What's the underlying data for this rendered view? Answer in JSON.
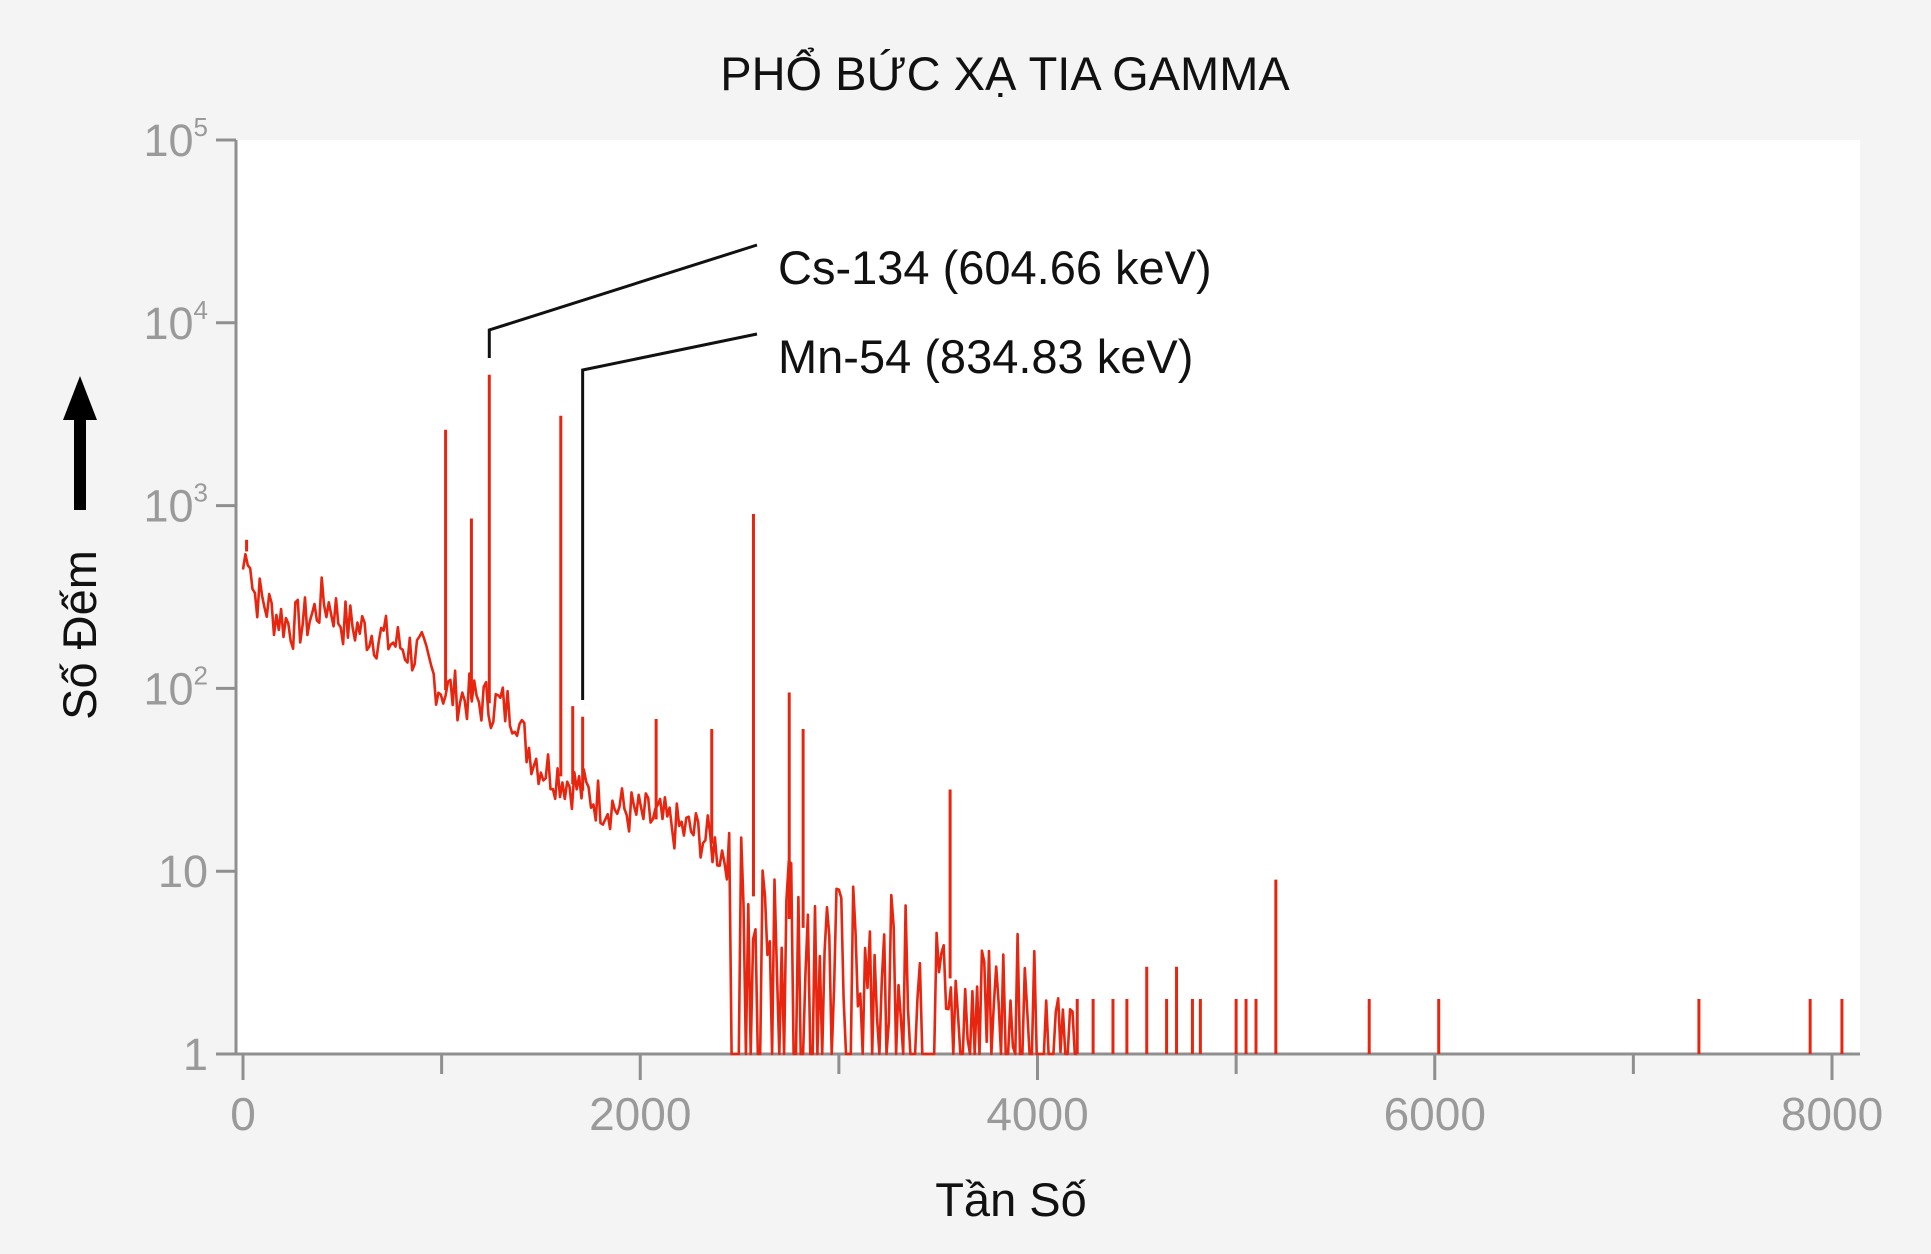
{
  "chart_data": {
    "type": "line",
    "title": "PHỔ BỨC XẠ TIA GAMMA",
    "xlabel": "Tần Số",
    "ylabel": "Số Đếm",
    "y_scale": "log",
    "xlim": [
      0,
      8100
    ],
    "ylim": [
      1,
      100000
    ],
    "x_ticks": [
      {
        "value": 0,
        "label": "0"
      },
      {
        "value": 2000,
        "label": "2000"
      },
      {
        "value": 4000,
        "label": "4000"
      },
      {
        "value": 6000,
        "label": "6000"
      },
      {
        "value": 8000,
        "label": "8000"
      }
    ],
    "y_ticks": [
      {
        "value": 1,
        "base": "1",
        "exp": ""
      },
      {
        "value": 10,
        "base": "10",
        "exp": ""
      },
      {
        "value": 100,
        "base": "10",
        "exp": "2"
      },
      {
        "value": 1000,
        "base": "10",
        "exp": "3"
      },
      {
        "value": 10000,
        "base": "10",
        "exp": "4"
      },
      {
        "value": 100000,
        "base": "10",
        "exp": "5"
      }
    ],
    "series": [
      {
        "color": "#e8250f",
        "continuum": [
          [
            0,
            450
          ],
          [
            30,
            650
          ],
          [
            50,
            340
          ],
          [
            100,
            300
          ],
          [
            150,
            260
          ],
          [
            200,
            240
          ],
          [
            250,
            220
          ],
          [
            300,
            230
          ],
          [
            350,
            250
          ],
          [
            400,
            300
          ],
          [
            450,
            280
          ],
          [
            500,
            230
          ],
          [
            600,
            210
          ],
          [
            700,
            190
          ],
          [
            800,
            170
          ],
          [
            900,
            150
          ],
          [
            950,
            120
          ],
          [
            1000,
            100
          ],
          [
            1100,
            90
          ],
          [
            1200,
            85
          ],
          [
            1300,
            80
          ],
          [
            1380,
            75
          ],
          [
            1400,
            55
          ],
          [
            1500,
            38
          ],
          [
            1600,
            33
          ],
          [
            1700,
            28
          ],
          [
            1800,
            24
          ],
          [
            1900,
            22
          ],
          [
            2000,
            20
          ],
          [
            2100,
            19
          ],
          [
            2200,
            17
          ],
          [
            2300,
            16
          ],
          [
            2400,
            13
          ],
          [
            2450,
            12
          ],
          [
            2500,
            8
          ],
          [
            2600,
            7
          ],
          [
            2700,
            6
          ],
          [
            2800,
            5
          ],
          [
            2900,
            4.5
          ],
          [
            3000,
            4
          ],
          [
            3200,
            3.5
          ],
          [
            3400,
            3
          ],
          [
            3600,
            2.5
          ],
          [
            3800,
            2.2
          ],
          [
            4000,
            2
          ],
          [
            4100,
            1.5
          ],
          [
            4200,
            1
          ]
        ],
        "peaks": [
          [
            18,
            650
          ],
          [
            1020,
            2600
          ],
          [
            1150,
            850
          ],
          [
            1240,
            5200
          ],
          [
            1600,
            3100
          ],
          [
            1660,
            80
          ],
          [
            1710,
            70
          ],
          [
            2080,
            68
          ],
          [
            2360,
            60
          ],
          [
            2570,
            900
          ],
          [
            2750,
            95
          ],
          [
            2820,
            60
          ],
          [
            3560,
            28
          ],
          [
            4260,
            1
          ],
          [
            5200,
            9
          ],
          [
            5670,
            2
          ],
          [
            6020,
            2
          ],
          [
            7330,
            2
          ],
          [
            7890,
            2
          ],
          [
            8050,
            2
          ]
        ],
        "sparse_counts": [
          [
            4200,
            2
          ],
          [
            4280,
            2
          ],
          [
            4380,
            2
          ],
          [
            4450,
            2
          ],
          [
            4550,
            3
          ],
          [
            4650,
            2
          ],
          [
            4700,
            3
          ],
          [
            4780,
            2
          ],
          [
            4820,
            2
          ],
          [
            5000,
            2
          ],
          [
            5050,
            2
          ],
          [
            5100,
            2
          ]
        ]
      }
    ],
    "annotations": [
      {
        "text": "Cs-134 (604.66 keV)",
        "x": 1240
      },
      {
        "text": "Mn-54 (834.83 keV)",
        "x": 1710
      }
    ]
  }
}
